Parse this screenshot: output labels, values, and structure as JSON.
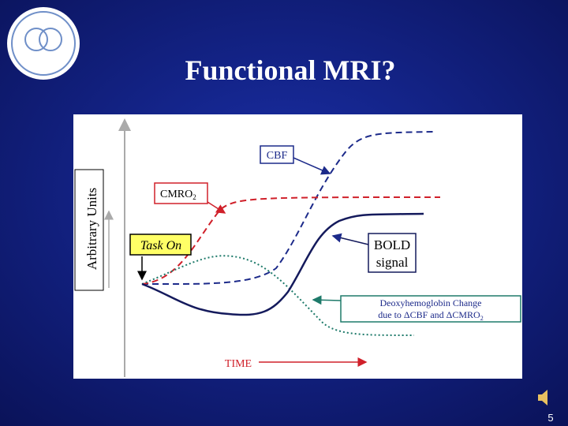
{
  "title": "Functional MRI?",
  "diagram": {
    "y_axis_label": "Arbitrary Units",
    "x_axis_label": "TIME",
    "labels": {
      "cbf": "CBF",
      "cmro2": {
        "text": "CMRO",
        "sub": "2"
      },
      "task_on": "Task On",
      "bold": [
        "BOLD",
        "signal"
      ],
      "deoxy": {
        "line1": "Deoxyhemoglobin Change",
        "line2": "due to ΔCBF and ΔCMRO",
        "sub": "2"
      }
    }
  },
  "page_number": "5"
}
